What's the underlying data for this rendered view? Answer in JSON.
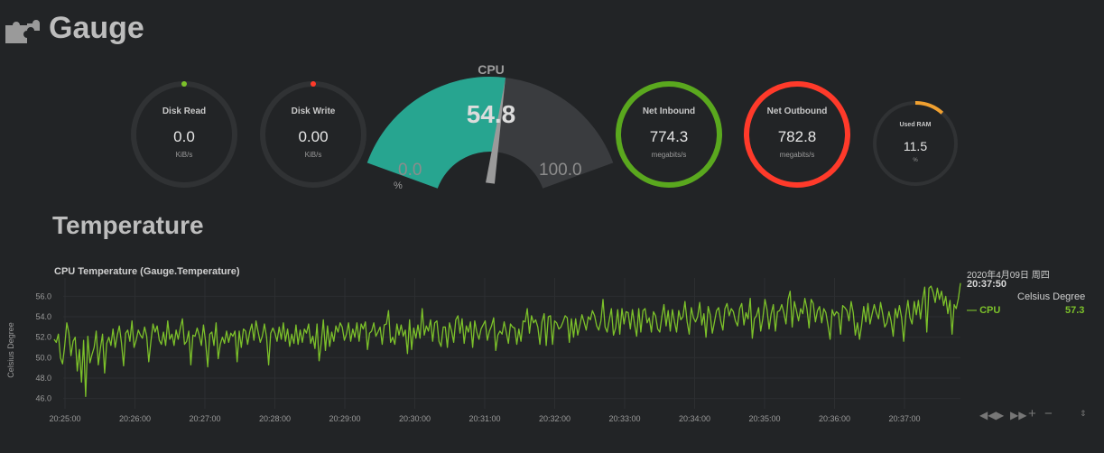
{
  "app": {
    "title": "Gauge",
    "logo_icon": "puzzle-icon"
  },
  "gauges": {
    "disk_read": {
      "label": "Disk Read",
      "value": "0.0",
      "unit": "KiB/s",
      "level": 0,
      "color": "#7cc12a"
    },
    "disk_write": {
      "label": "Disk Write",
      "value": "0.00",
      "unit": "KiB/s",
      "level": 0,
      "color": "#ff3a2a"
    },
    "cpu": {
      "label": "CPU",
      "value": "54.8",
      "min": "0.0",
      "max": "100.0",
      "unit": "%",
      "level": 0.548,
      "color": "#27a590"
    },
    "net_inbound": {
      "label": "Net Inbound",
      "value": "774.3",
      "unit": "megabits/s",
      "level": 1,
      "color": "#5aa81e"
    },
    "net_outbound": {
      "label": "Net Outbound",
      "value": "782.8",
      "unit": "megabits/s",
      "level": 1,
      "color": "#ff3a2a"
    },
    "used_ram": {
      "label": "Used RAM",
      "value": "11.5",
      "unit": "%",
      "level": 0.115,
      "color": "#f0a030"
    }
  },
  "temperature": {
    "section_title": "Temperature",
    "chart_title": "CPU Temperature (Gauge.Temperature)",
    "legend": {
      "date": "2020年4月09日 周四",
      "time": "20:37:50",
      "unit": "Celsius Degree",
      "series_name": "CPU",
      "series_value": "57.3"
    },
    "controls": [
      "rewind-icon",
      "play-icon",
      "fast-forward-icon",
      "zoom-in-icon",
      "zoom-out-icon",
      "resize-icon"
    ]
  },
  "chart_data": {
    "type": "line",
    "title": "CPU Temperature (Gauge.Temperature)",
    "xlabel": "",
    "ylabel": "Celsius Degree",
    "ylim": [
      45,
      57.8
    ],
    "yticks": [
      "56.0",
      "54.0",
      "52.0",
      "50.0",
      "48.0",
      "46.0"
    ],
    "xticks": [
      "20:25:00",
      "20:26:00",
      "20:27:00",
      "20:28:00",
      "20:29:00",
      "20:30:00",
      "20:31:00",
      "20:32:00",
      "20:33:00",
      "20:34:00",
      "20:35:00",
      "20:36:00",
      "20:37:00"
    ],
    "grid": true,
    "series": [
      {
        "name": "CPU",
        "color": "#7cc12a",
        "start": "20:24:52",
        "step_seconds": 1,
        "values": [
          51.8,
          51.5,
          52.3,
          50.0,
          49.4,
          51.1,
          53.4,
          52.4,
          50.2,
          51.6,
          52.0,
          48.7,
          50.8,
          47.6,
          51.7,
          46.2,
          52.1,
          49.5,
          50.3,
          51.0,
          52.6,
          49.3,
          50.9,
          52.3,
          48.5,
          51.4,
          52.0,
          51.2,
          52.8,
          51.0,
          52.2,
          53.1,
          51.5,
          49.2,
          52.4,
          52.7,
          51.6,
          53.6,
          51.0,
          51.7,
          52.7,
          52.2,
          51.9,
          53.0,
          52.1,
          49.6,
          51.6,
          53.3,
          52.5,
          53.1,
          51.7,
          51.3,
          52.5,
          51.2,
          53.6,
          51.8,
          52.3,
          51.2,
          52.7,
          51.8,
          52.9,
          53.8,
          51.3,
          51.6,
          52.6,
          49.3,
          52.2,
          52.1,
          52.9,
          52.2,
          51.2,
          53.2,
          51.6,
          49.1,
          52.3,
          52.5,
          51.2,
          53.4,
          49.9,
          51.3,
          52.0,
          51.4,
          52.6,
          51.5,
          52.4,
          52.1,
          52.6,
          49.6,
          52.6,
          51.0,
          52.8,
          52.6,
          51.3,
          52.5,
          53.3,
          51.7,
          53.6,
          52.5,
          51.5,
          52.1,
          53.3,
          52.0,
          49.3,
          52.4,
          52.9,
          52.4,
          51.6,
          53.0,
          51.8,
          53.4,
          51.6,
          52.8,
          51.1,
          52.3,
          51.4,
          53.2,
          51.3,
          52.7,
          51.5,
          52.8,
          52.4,
          53.3,
          51.4,
          52.1,
          50.9,
          53.3,
          49.7,
          51.4,
          53.7,
          50.7,
          53.1,
          51.1,
          52.5,
          51.6,
          53.1,
          52.5,
          53.4,
          53.0,
          51.7,
          52.3,
          53.4,
          51.6,
          52.8,
          52.0,
          53.4,
          51.6,
          53.3,
          52.8,
          53.5,
          50.8,
          52.4,
          52.6,
          53.4,
          52.1,
          52.5,
          53.0,
          51.3,
          53.2,
          53.3,
          54.6,
          51.5,
          52.0,
          51.3,
          53.3,
          52.2,
          53.2,
          52.1,
          52.7,
          50.4,
          53.7,
          50.8,
          52.9,
          51.9,
          53.2,
          51.9,
          54.8,
          52.2,
          53.1,
          52.6,
          53.7,
          51.6,
          53.4,
          53.6,
          51.6,
          51.1,
          53.0,
          53.0,
          51.0,
          53.4,
          52.6,
          51.5,
          53.7,
          54.1,
          52.4,
          53.8,
          51.4,
          53.1,
          52.5,
          53.5,
          51.0,
          53.6,
          52.5,
          51.8,
          52.8,
          53.2,
          53.6,
          51.7,
          52.6,
          53.1,
          53.9,
          50.7,
          52.2,
          52.6,
          52.3,
          53.5,
          52.5,
          51.4,
          53.3,
          53.0,
          52.9,
          51.3,
          52.8,
          51.6,
          53.6,
          53.5,
          54.8,
          52.4,
          54.1,
          53.4,
          53.7,
          53.0,
          51.3,
          53.5,
          54.3,
          51.2,
          54.0,
          54.1,
          51.3,
          53.6,
          53.4,
          52.8,
          53.0,
          53.5,
          54.1,
          53.9,
          51.5,
          53.8,
          52.0,
          53.8,
          52.2,
          53.2,
          54.2,
          53.5,
          52.7,
          54.0,
          53.7,
          54.6,
          54.1,
          53.1,
          52.7,
          53.6,
          55.7,
          53.0,
          52.5,
          53.7,
          54.8,
          52.2,
          52.9,
          54.7,
          52.3,
          54.8,
          53.3,
          54.5,
          54.4,
          52.8,
          54.7,
          53.3,
          52.1,
          54.8,
          52.5,
          54.6,
          54.8,
          53.4,
          53.9,
          52.5,
          54.5,
          54.1,
          52.8,
          52.5,
          54.0,
          55.2,
          53.1,
          54.6,
          52.6,
          54.7,
          53.5,
          52.5,
          54.6,
          53.7,
          54.0,
          55.5,
          53.5,
          52.3,
          54.9,
          53.9,
          53.5,
          54.0,
          55.4,
          53.2,
          54.3,
          52.0,
          55.0,
          54.2,
          52.4,
          53.5,
          54.6,
          54.9,
          53.6,
          52.7,
          54.8,
          55.3,
          54.1,
          54.8,
          54.5,
          53.6,
          53.1,
          54.8,
          55.3,
          53.2,
          54.4,
          53.8,
          55.8,
          51.9,
          53.8,
          54.1,
          54.9,
          52.6,
          53.8,
          55.7,
          54.7,
          52.8,
          54.3,
          55.2,
          52.6,
          54.5,
          54.6,
          55.2,
          54.4,
          53.3,
          55.7,
          56.5,
          53.0,
          55.5,
          54.6,
          53.6,
          54.8,
          54.3,
          55.8,
          54.8,
          52.9,
          55.7,
          55.3,
          53.5,
          54.6,
          55.0,
          53.4,
          54.8,
          54.4,
          53.2,
          51.8,
          54.7,
          54.1,
          54.5,
          54.3,
          52.3,
          55.1,
          54.9,
          54.6,
          53.6,
          55.5,
          54.4,
          52.2,
          53.4,
          51.8,
          53.2,
          55.0,
          53.5,
          55.3,
          53.3,
          54.3,
          55.2,
          54.4,
          53.8,
          55.4,
          54.3,
          53.0,
          53.4,
          54.5,
          53.6,
          52.1,
          54.8,
          53.9,
          55.1,
          53.9,
          51.6,
          54.1,
          55.6,
          53.9,
          53.3,
          55.5,
          54.2,
          55.6,
          53.8,
          55.7,
          56.9,
          52.5,
          56.8,
          57.0,
          56.4,
          55.4,
          56.8,
          55.7,
          56.5,
          55.1,
          56.0,
          54.3,
          55.6,
          52.3,
          55.2,
          54.8,
          55.8,
          57.3
        ]
      }
    ]
  }
}
